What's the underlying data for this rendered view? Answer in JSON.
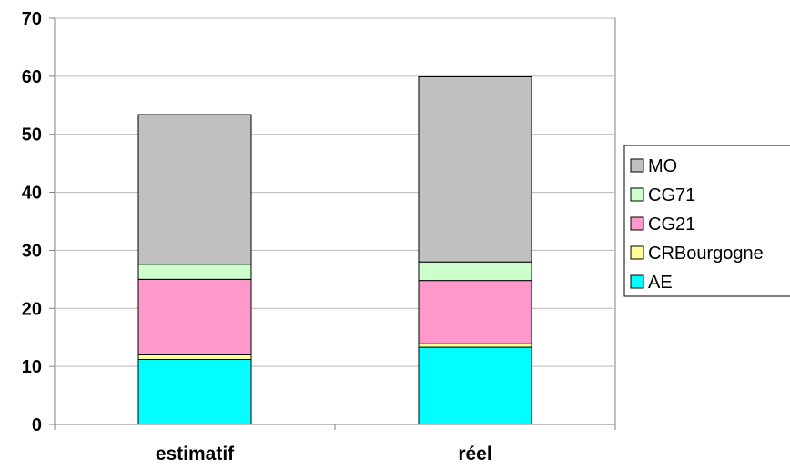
{
  "chart_data": {
    "type": "bar",
    "stacked": true,
    "categories": [
      "estimatif",
      "réel"
    ],
    "series": [
      {
        "name": "AE",
        "color": "#00FFFF",
        "values": [
          11.2,
          13.3
        ]
      },
      {
        "name": "CRBourgogne",
        "color": "#FFFF99",
        "values": [
          0.8,
          0.6
        ]
      },
      {
        "name": "CG21",
        "color": "#FF99CC",
        "values": [
          13.0,
          10.9
        ]
      },
      {
        "name": "CG71",
        "color": "#CCFFCC",
        "values": [
          2.6,
          3.2
        ]
      },
      {
        "name": "MO",
        "color": "#C0C0C0",
        "values": [
          25.8,
          31.9
        ]
      }
    ],
    "yticks": [
      "0",
      "10",
      "20",
      "30",
      "40",
      "50",
      "60",
      "70"
    ],
    "ylim": [
      0,
      70
    ],
    "title": "",
    "xlabel": "",
    "ylabel": "",
    "grid": true,
    "legend_position": "right",
    "legend_order": [
      "MO",
      "CG71",
      "CG21",
      "CRBourgogne",
      "AE"
    ]
  }
}
